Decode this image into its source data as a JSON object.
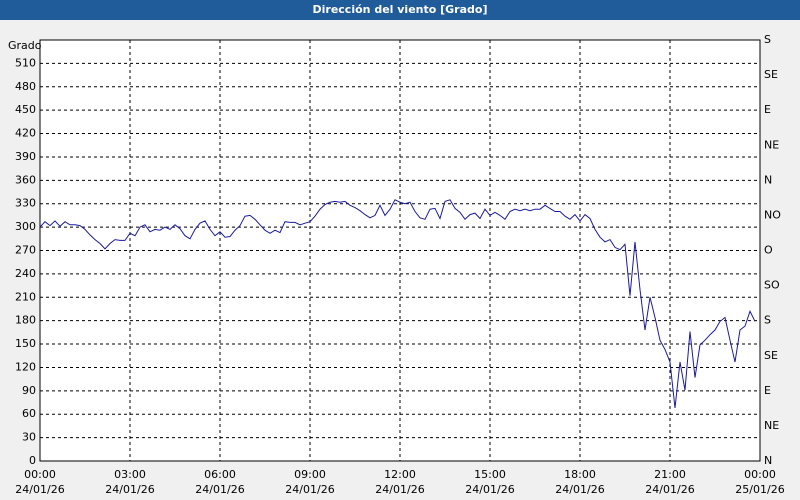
{
  "chart_data": {
    "type": "line",
    "title": "Dirección del viento [Grado]",
    "y_label": "Grado",
    "color": "#1a1aa0",
    "grid": true,
    "xlim": [
      0,
      1440
    ],
    "xticks": [
      {
        "value": 0,
        "label": "00:00 24/01/26"
      },
      {
        "value": 180,
        "label": "03:00 24/01/26"
      },
      {
        "value": 360,
        "label": "06:00 24/01/26"
      },
      {
        "value": 540,
        "label": "09:00 24/01/26"
      },
      {
        "value": 720,
        "label": "12:00 24/01/26"
      },
      {
        "value": 900,
        "label": "15:00 24/01/26"
      },
      {
        "value": 1080,
        "label": "18:00 24/01/26"
      },
      {
        "value": 1260,
        "label": "21:00 24/01/26"
      },
      {
        "value": 1440,
        "label": "00:00 25/01/26"
      }
    ],
    "ylim": [
      0,
      540
    ],
    "yticks": [
      0,
      30,
      60,
      90,
      120,
      150,
      180,
      210,
      240,
      270,
      300,
      330,
      360,
      390,
      420,
      450,
      480,
      510
    ],
    "y2lim": [
      0,
      540
    ],
    "y2ticks": [
      {
        "value": 0,
        "label": "N"
      },
      {
        "value": 45,
        "label": "NE"
      },
      {
        "value": 90,
        "label": "E"
      },
      {
        "value": 135,
        "label": "SE"
      },
      {
        "value": 180,
        "label": "S"
      },
      {
        "value": 225,
        "label": "SO"
      },
      {
        "value": 270,
        "label": "O"
      },
      {
        "value": 315,
        "label": "NO"
      },
      {
        "value": 360,
        "label": "N"
      },
      {
        "value": 405,
        "label": "NE"
      },
      {
        "value": 450,
        "label": "E"
      },
      {
        "value": 495,
        "label": "SE"
      },
      {
        "value": 540,
        "label": "S"
      }
    ],
    "x": [
      0,
      10,
      20,
      30,
      40,
      50,
      60,
      70,
      80,
      90,
      100,
      110,
      120,
      130,
      140,
      150,
      160,
      170,
      180,
      190,
      200,
      210,
      220,
      230,
      240,
      250,
      260,
      270,
      280,
      290,
      300,
      310,
      320,
      330,
      340,
      350,
      360,
      370,
      380,
      390,
      400,
      410,
      420,
      430,
      440,
      450,
      460,
      470,
      480,
      490,
      500,
      510,
      520,
      530,
      540,
      550,
      560,
      570,
      580,
      590,
      600,
      610,
      620,
      630,
      640,
      650,
      660,
      670,
      680,
      690,
      700,
      710,
      720,
      730,
      740,
      750,
      760,
      770,
      780,
      790,
      800,
      810,
      820,
      830,
      840,
      850,
      860,
      870,
      880,
      890,
      900,
      910,
      920,
      930,
      940,
      950,
      960,
      970,
      980,
      990,
      1000,
      1010,
      1020,
      1030,
      1040,
      1050,
      1060,
      1070,
      1080,
      1090,
      1100,
      1110,
      1120,
      1130,
      1140,
      1150,
      1160,
      1170,
      1180,
      1190,
      1200,
      1210,
      1220,
      1230,
      1240,
      1250,
      1260,
      1270,
      1280,
      1290,
      1300,
      1310,
      1320,
      1330,
      1340,
      1350,
      1360,
      1370,
      1380,
      1390,
      1400,
      1410,
      1420,
      1430
    ],
    "values": [
      300,
      307,
      302,
      308,
      301,
      307,
      303,
      303,
      302,
      297,
      290,
      284,
      279,
      272,
      279,
      284,
      283,
      283,
      292,
      289,
      300,
      303,
      294,
      297,
      296,
      300,
      297,
      303,
      298,
      289,
      285,
      297,
      305,
      308,
      297,
      289,
      294,
      287,
      288,
      296,
      302,
      314,
      315,
      310,
      303,
      296,
      292,
      296,
      293,
      307,
      306,
      306,
      303,
      305,
      307,
      314,
      323,
      329,
      332,
      333,
      332,
      333,
      328,
      325,
      321,
      316,
      312,
      315,
      328,
      315,
      323,
      335,
      332,
      330,
      332,
      320,
      312,
      310,
      323,
      324,
      311,
      333,
      335,
      324,
      319,
      310,
      316,
      318,
      311,
      323,
      315,
      319,
      315,
      310,
      320,
      323,
      321,
      323,
      321,
      323,
      323,
      328,
      324,
      320,
      320,
      314,
      310,
      316,
      308,
      316,
      311,
      297,
      287,
      281,
      284,
      274,
      271,
      278,
      212,
      281,
      220,
      168,
      210,
      184,
      155,
      143,
      127,
      68,
      127,
      91,
      166,
      107,
      149,
      155,
      162,
      168,
      179,
      184,
      155,
      127,
      168,
      173,
      192,
      179
    ]
  }
}
